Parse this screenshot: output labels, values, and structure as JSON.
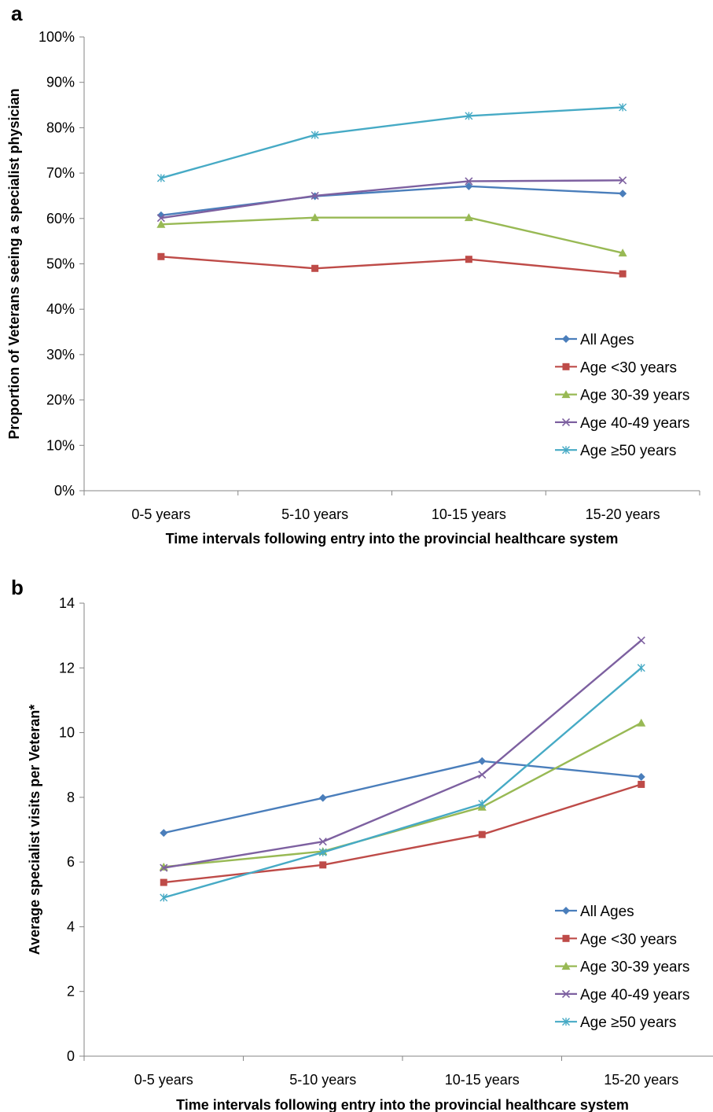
{
  "chart_data": [
    {
      "panel_label": "a",
      "type": "line",
      "categories": [
        "0-5 years",
        "5-10 years",
        "10-15 years",
        "15-20 years"
      ],
      "ylabel": "Proportion of Veterans seeing a specialist physician",
      "xlabel": "Time intervals following entry into the provincial healthcare system",
      "ylim": [
        0,
        100
      ],
      "ytick_labels": [
        "0%",
        "10%",
        "20%",
        "30%",
        "40%",
        "50%",
        "60%",
        "70%",
        "80%",
        "90%",
        "100%"
      ],
      "legend_position": "bottom-right",
      "grid": false,
      "series": [
        {
          "name": "All Ages",
          "color": "#4a7ebb",
          "marker": "diamond",
          "values": [
            60.7,
            64.9,
            67.1,
            65.5
          ]
        },
        {
          "name": "Age <30 years",
          "color": "#be4b48",
          "marker": "square",
          "values": [
            51.6,
            49.0,
            51.0,
            47.8
          ]
        },
        {
          "name": "Age 30-39 years",
          "color": "#98b954",
          "marker": "triangle",
          "values": [
            58.7,
            60.2,
            60.2,
            52.4
          ]
        },
        {
          "name": "Age 40-49 years",
          "color": "#7d60a0",
          "marker": "x",
          "values": [
            60.1,
            65.0,
            68.2,
            68.4
          ]
        },
        {
          "name": "Age ≥50 years",
          "color": "#46aac5",
          "marker": "star",
          "values": [
            68.9,
            78.4,
            82.6,
            84.5
          ]
        }
      ]
    },
    {
      "panel_label": "b",
      "type": "line",
      "categories": [
        "0-5 years",
        "5-10 years",
        "10-15 years",
        "15-20 years"
      ],
      "ylabel": "Average specialist visits per Veteran*",
      "xlabel": "Time intervals following entry into the provincial healthcare system",
      "ylim": [
        0,
        14
      ],
      "ytick_labels": [
        "0",
        "2",
        "4",
        "6",
        "8",
        "10",
        "12",
        "14"
      ],
      "legend_position": "bottom-right",
      "grid": false,
      "series": [
        {
          "name": "All Ages",
          "color": "#4a7ebb",
          "marker": "diamond",
          "values": [
            6.9,
            7.98,
            9.12,
            8.63
          ]
        },
        {
          "name": "Age <30 years",
          "color": "#be4b48",
          "marker": "square",
          "values": [
            5.37,
            5.91,
            6.85,
            8.4
          ]
        },
        {
          "name": "Age 30-39 years",
          "color": "#98b954",
          "marker": "triangle",
          "values": [
            5.85,
            6.33,
            7.7,
            10.3
          ]
        },
        {
          "name": "Age 40-49 years",
          "color": "#7d60a0",
          "marker": "x",
          "values": [
            5.82,
            6.63,
            8.7,
            12.85
          ]
        },
        {
          "name": "Age ≥50 years",
          "color": "#46aac5",
          "marker": "star",
          "values": [
            4.9,
            6.3,
            7.8,
            12.0
          ]
        }
      ]
    }
  ]
}
